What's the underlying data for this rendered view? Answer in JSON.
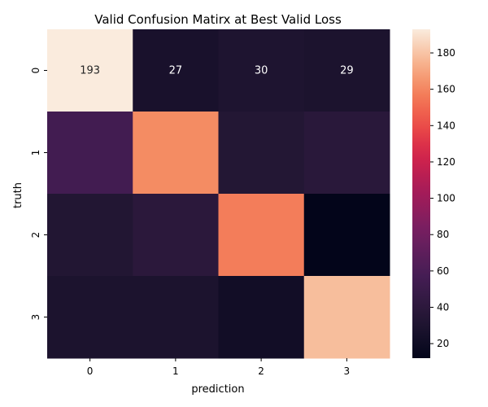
{
  "chart_data": {
    "type": "heatmap",
    "title": "Valid Confusion Matirx at Best Valid Loss",
    "xlabel": "prediction",
    "ylabel": "truth",
    "x_categories": [
      "0",
      "1",
      "2",
      "3"
    ],
    "y_categories": [
      "0",
      "1",
      "2",
      "3"
    ],
    "values": [
      [
        193,
        27,
        30,
        29
      ],
      [
        55,
        162,
        34,
        38
      ],
      [
        33,
        39,
        157,
        12
      ],
      [
        29,
        29,
        22,
        178
      ]
    ],
    "cell_labels": [
      [
        "193",
        "27",
        "30",
        "29"
      ],
      [
        "",
        "",
        "",
        ""
      ],
      [
        "",
        "",
        "",
        ""
      ],
      [
        "",
        "",
        "",
        ""
      ]
    ],
    "colorbar": {
      "min": 12,
      "max": 193,
      "ticks": [
        20,
        40,
        60,
        80,
        100,
        120,
        140,
        160,
        180
      ]
    },
    "colormap": "rocket"
  }
}
